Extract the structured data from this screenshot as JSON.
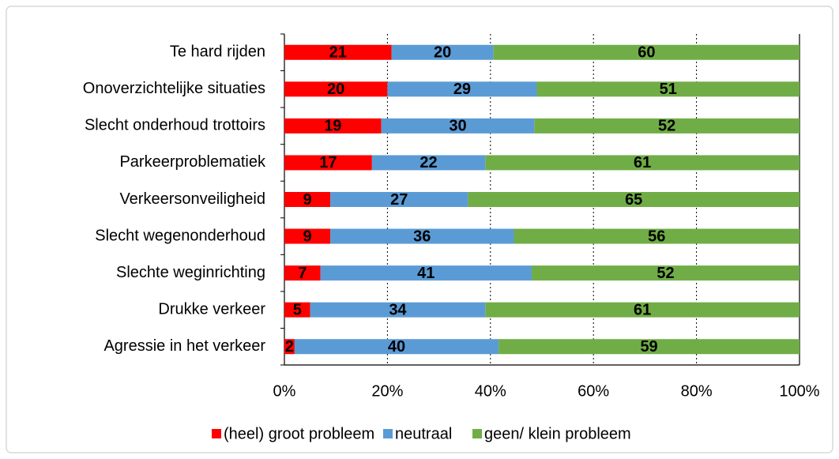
{
  "chart_data": {
    "type": "bar",
    "orientation": "horizontal",
    "stacked": "percent",
    "categories": [
      "Te hard rijden",
      "Onoverzichtelijke situaties",
      "Slecht onderhoud trottoirs",
      "Parkeerproblematiek",
      "Verkeersonveiligheid",
      "Slecht wegenonderhoud",
      "Slechte weginrichting",
      "Drukke verkeer",
      "Agressie in het verkeer"
    ],
    "series": [
      {
        "name": "(heel) groot probleem",
        "color": "#ff0000",
        "values": [
          21,
          20,
          19,
          17,
          9,
          9,
          7,
          5,
          2
        ]
      },
      {
        "name": "neutraal",
        "color": "#5b9bd5",
        "values": [
          20,
          29,
          30,
          22,
          27,
          36,
          41,
          34,
          40
        ]
      },
      {
        "name": "geen/ klein probleem",
        "color": "#70ad47",
        "values": [
          60,
          51,
          52,
          61,
          65,
          56,
          52,
          61,
          59
        ]
      }
    ],
    "xlim": [
      0,
      100
    ],
    "xticks": [
      {
        "value": 0,
        "label": "0%"
      },
      {
        "value": 20,
        "label": "20%"
      },
      {
        "value": 40,
        "label": "40%"
      },
      {
        "value": 60,
        "label": "60%"
      },
      {
        "value": 80,
        "label": "80%"
      },
      {
        "value": 100,
        "label": "100%"
      }
    ],
    "grid": true,
    "legend": "bottom"
  }
}
